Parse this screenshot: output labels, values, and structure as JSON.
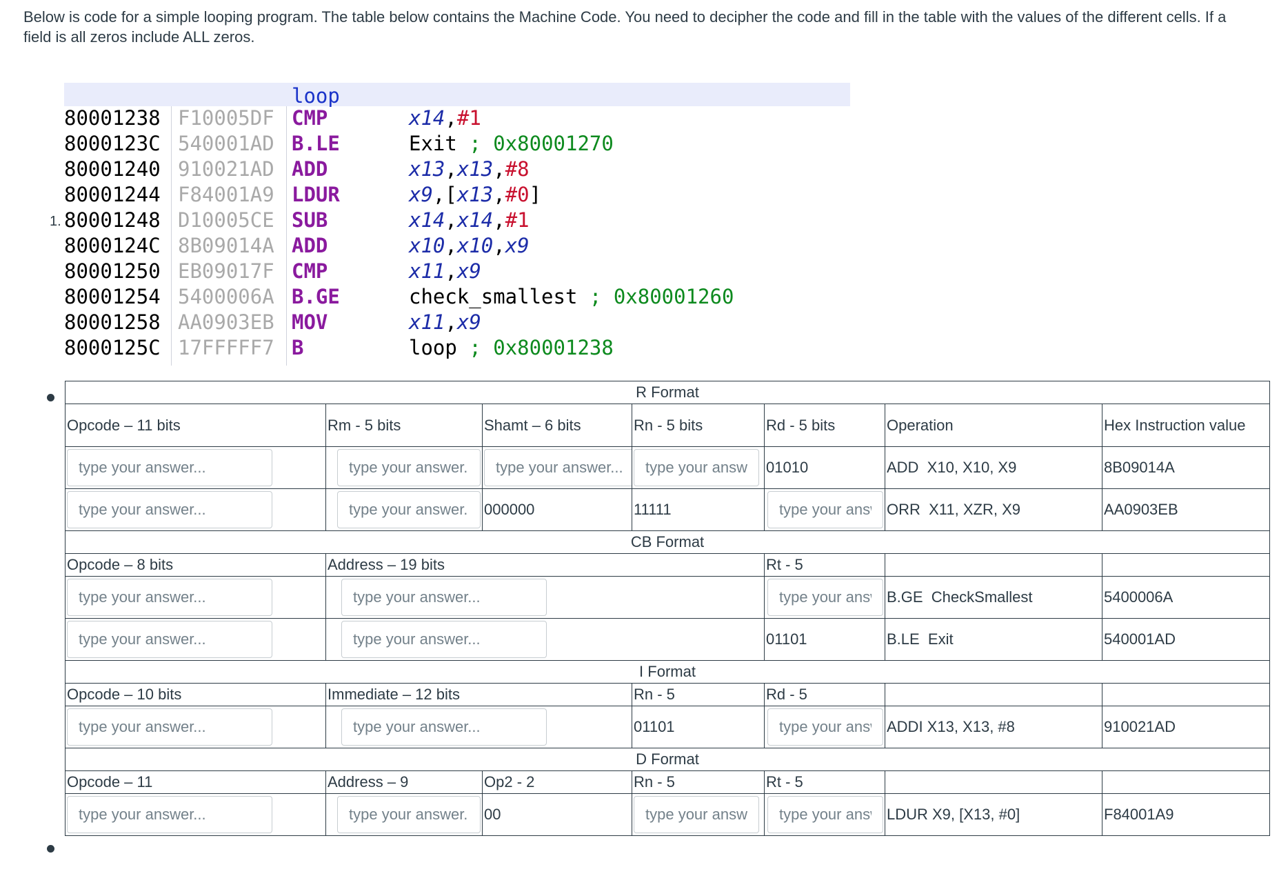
{
  "instructions": {
    "text": "Below is code for a simple looping program. The table below contains the Machine Code. You need to decipher the code and fill in the table with the values of the different cells. If a field is all zeros include ALL zeros."
  },
  "list_number": "1.",
  "disassembly": {
    "label": "loop",
    "rows": [
      {
        "addr": "80001238",
        "code": "F10005DF",
        "mnemonic": "CMP",
        "ops": [
          {
            "t": "x14",
            "k": "reg"
          },
          {
            "t": ",",
            "k": "plain"
          },
          {
            "t": "#1",
            "k": "imm"
          }
        ]
      },
      {
        "addr": "8000123C",
        "code": "540001AD",
        "mnemonic": "B.LE",
        "ops": [
          {
            "t": "Exit ",
            "k": "plain"
          },
          {
            "t": "; 0x80001270",
            "k": "cmt"
          }
        ]
      },
      {
        "addr": "80001240",
        "code": "910021AD",
        "mnemonic": "ADD",
        "ops": [
          {
            "t": "x13",
            "k": "reg"
          },
          {
            "t": ",",
            "k": "plain"
          },
          {
            "t": "x13",
            "k": "reg"
          },
          {
            "t": ",",
            "k": "plain"
          },
          {
            "t": "#8",
            "k": "imm"
          }
        ]
      },
      {
        "addr": "80001244",
        "code": "F84001A9",
        "mnemonic": "LDUR",
        "ops": [
          {
            "t": "x9",
            "k": "reg"
          },
          {
            "t": ",[",
            "k": "plain"
          },
          {
            "t": "x13",
            "k": "reg"
          },
          {
            "t": ",",
            "k": "plain"
          },
          {
            "t": "#0",
            "k": "imm"
          },
          {
            "t": "]",
            "k": "plain"
          }
        ]
      },
      {
        "addr": "80001248",
        "code": "D10005CE",
        "mnemonic": "SUB",
        "ops": [
          {
            "t": "x14",
            "k": "reg"
          },
          {
            "t": ",",
            "k": "plain"
          },
          {
            "t": "x14",
            "k": "reg"
          },
          {
            "t": ",",
            "k": "plain"
          },
          {
            "t": "#1",
            "k": "imm"
          }
        ]
      },
      {
        "addr": "8000124C",
        "code": "8B09014A",
        "mnemonic": "ADD",
        "ops": [
          {
            "t": "x10",
            "k": "reg"
          },
          {
            "t": ",",
            "k": "plain"
          },
          {
            "t": "x10",
            "k": "reg"
          },
          {
            "t": ",",
            "k": "plain"
          },
          {
            "t": "x9",
            "k": "reg"
          }
        ]
      },
      {
        "addr": "80001250",
        "code": "EB09017F",
        "mnemonic": "CMP",
        "ops": [
          {
            "t": "x11",
            "k": "reg"
          },
          {
            "t": ",",
            "k": "plain"
          },
          {
            "t": "x9",
            "k": "reg"
          }
        ]
      },
      {
        "addr": "80001254",
        "code": "5400006A",
        "mnemonic": "B.GE",
        "ops": [
          {
            "t": "check_smallest ",
            "k": "plain"
          },
          {
            "t": "; 0x80001260",
            "k": "cmt"
          }
        ]
      },
      {
        "addr": "80001258",
        "code": "AA0903EB",
        "mnemonic": "MOV",
        "ops": [
          {
            "t": "x11",
            "k": "reg"
          },
          {
            "t": ",",
            "k": "plain"
          },
          {
            "t": "x9",
            "k": "reg"
          }
        ]
      },
      {
        "addr": "8000125C",
        "code": "17FFFFF7",
        "mnemonic": "B",
        "ops": [
          {
            "t": "loop ",
            "k": "plain"
          },
          {
            "t": "; 0x80001238",
            "k": "cmt"
          }
        ]
      }
    ]
  },
  "placeholder": "type your answer...",
  "table": {
    "r_format": {
      "title": "R Format",
      "headers": {
        "opcode": "Opcode – 11 bits",
        "rm": "Rm - 5 bits",
        "shamt": "Shamt – 6 bits",
        "rn": "Rn - 5 bits",
        "rd": "Rd - 5 bits",
        "operation": "Operation",
        "hex": "Hex Instruction value"
      },
      "row1": {
        "rd": "01010",
        "operation": "ADD  X10, X10, X9",
        "hex": "8B09014A"
      },
      "row2": {
        "shamt": "000000",
        "rn": "11111",
        "operation": "ORR  X11, XZR, X9",
        "hex": "AA0903EB"
      }
    },
    "cb_format": {
      "title": "CB Format",
      "headers": {
        "opcode": "Opcode – 8 bits",
        "address": "Address – 19 bits",
        "rt": "Rt - 5"
      },
      "row1": {
        "operation": "B.GE  CheckSmallest",
        "hex": "5400006A"
      },
      "row2": {
        "rt": "01101",
        "operation": "B.LE  Exit",
        "hex": "540001AD"
      }
    },
    "i_format": {
      "title": "I Format",
      "headers": {
        "opcode": "Opcode – 10 bits",
        "immediate": "Immediate – 12 bits",
        "rn": "Rn - 5",
        "rd": "Rd - 5"
      },
      "row1": {
        "rn": "01101",
        "operation": "ADDI X13, X13, #8",
        "hex": "910021AD"
      }
    },
    "d_format": {
      "title": "D Format",
      "headers": {
        "opcode": "Opcode – 11",
        "address": "Address – 9",
        "op2": "Op2 - 2",
        "rn": "Rn - 5",
        "rt": "Rt - 5"
      },
      "row1": {
        "op2": "00",
        "operation": "LDUR X9, [X13, #0]",
        "hex": "F84001A9"
      }
    }
  }
}
